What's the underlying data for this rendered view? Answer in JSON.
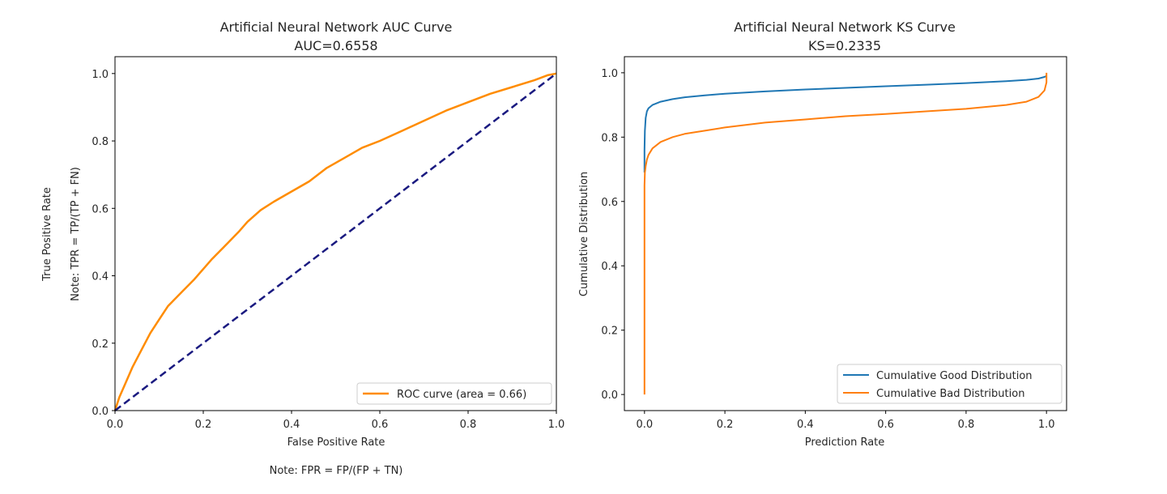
{
  "chart_data": [
    {
      "type": "line",
      "title": "Artificial Neural Network AUC Curve",
      "subtitle": "AUC=0.6558",
      "xlabel": "False Positive Rate",
      "ylabel_line1": "True Positive Rate",
      "ylabel_line2": "Note: TPR = TP/(TP + FN)",
      "note": "Note: FPR = FP/(FP + TN)",
      "xlim": [
        0.0,
        1.0
      ],
      "ylim": [
        0.0,
        1.05
      ],
      "xticks": [
        0.0,
        0.2,
        0.4,
        0.6,
        0.8,
        1.0
      ],
      "xtick_labels": [
        "0.0",
        "0.2",
        "0.4",
        "0.6",
        "0.8",
        "1.0"
      ],
      "yticks": [
        0.0,
        0.2,
        0.4,
        0.6,
        0.8,
        1.0
      ],
      "ytick_labels": [
        "0.0",
        "0.2",
        "0.4",
        "0.6",
        "0.8",
        "1.0"
      ],
      "grid": false,
      "legend_position": "bottom-right",
      "series": [
        {
          "name": "ROC curve (area = 0.66)",
          "color": "#ff8c00",
          "style": "solid",
          "x": [
            0.0,
            0.01,
            0.02,
            0.04,
            0.06,
            0.08,
            0.1,
            0.12,
            0.15,
            0.18,
            0.2,
            0.22,
            0.25,
            0.28,
            0.3,
            0.33,
            0.36,
            0.4,
            0.44,
            0.48,
            0.52,
            0.56,
            0.6,
            0.65,
            0.7,
            0.75,
            0.8,
            0.85,
            0.9,
            0.95,
            0.98,
            1.0
          ],
          "y": [
            0.0,
            0.04,
            0.07,
            0.13,
            0.18,
            0.23,
            0.27,
            0.31,
            0.35,
            0.39,
            0.42,
            0.45,
            0.49,
            0.53,
            0.56,
            0.595,
            0.62,
            0.65,
            0.68,
            0.72,
            0.75,
            0.78,
            0.8,
            0.83,
            0.86,
            0.89,
            0.915,
            0.94,
            0.96,
            0.98,
            0.995,
            1.0
          ]
        },
        {
          "color": "#1a1a80",
          "style": "dashed",
          "x": [
            0.0,
            1.0
          ],
          "y": [
            0.0,
            1.0
          ]
        }
      ]
    },
    {
      "type": "line",
      "title": "Artificial Neural Network KS Curve",
      "subtitle": "KS=0.2335",
      "xlabel": "Prediction Rate",
      "ylabel": "Cumulative Distribution",
      "xlim": [
        -0.05,
        1.05
      ],
      "ylim": [
        -0.05,
        1.05
      ],
      "xticks": [
        0.0,
        0.2,
        0.4,
        0.6,
        0.8,
        1.0
      ],
      "xtick_labels": [
        "0.0",
        "0.2",
        "0.4",
        "0.6",
        "0.8",
        "1.0"
      ],
      "yticks": [
        0.0,
        0.2,
        0.4,
        0.6,
        0.8,
        1.0
      ],
      "ytick_labels": [
        "0.0",
        "0.2",
        "0.4",
        "0.6",
        "0.8",
        "1.0"
      ],
      "grid": false,
      "legend_position": "bottom-right",
      "series": [
        {
          "name": "Cumulative Good Distribution",
          "color": "#1f77b4",
          "x": [
            0.0,
            0.0,
            0.001,
            0.003,
            0.006,
            0.01,
            0.02,
            0.04,
            0.07,
            0.1,
            0.15,
            0.2,
            0.3,
            0.4,
            0.5,
            0.6,
            0.7,
            0.8,
            0.9,
            0.95,
            0.98,
            0.995,
            1.0
          ],
          "y": [
            0.69,
            0.76,
            0.82,
            0.86,
            0.88,
            0.89,
            0.9,
            0.91,
            0.918,
            0.924,
            0.93,
            0.935,
            0.942,
            0.948,
            0.953,
            0.958,
            0.963,
            0.968,
            0.974,
            0.978,
            0.982,
            0.987,
            0.99
          ]
        },
        {
          "name": "Cumulative Bad Distribution",
          "color": "#ff7f0e",
          "x": [
            0.0,
            0.0,
            0.0,
            0.001,
            0.003,
            0.006,
            0.01,
            0.02,
            0.04,
            0.07,
            0.1,
            0.15,
            0.2,
            0.3,
            0.4,
            0.5,
            0.6,
            0.7,
            0.8,
            0.9,
            0.95,
            0.98,
            0.995,
            1.0,
            1.0
          ],
          "y": [
            0.0,
            0.4,
            0.65,
            0.69,
            0.71,
            0.73,
            0.745,
            0.765,
            0.785,
            0.8,
            0.81,
            0.82,
            0.83,
            0.845,
            0.855,
            0.865,
            0.872,
            0.88,
            0.888,
            0.9,
            0.91,
            0.925,
            0.945,
            0.97,
            1.0
          ]
        }
      ]
    }
  ]
}
